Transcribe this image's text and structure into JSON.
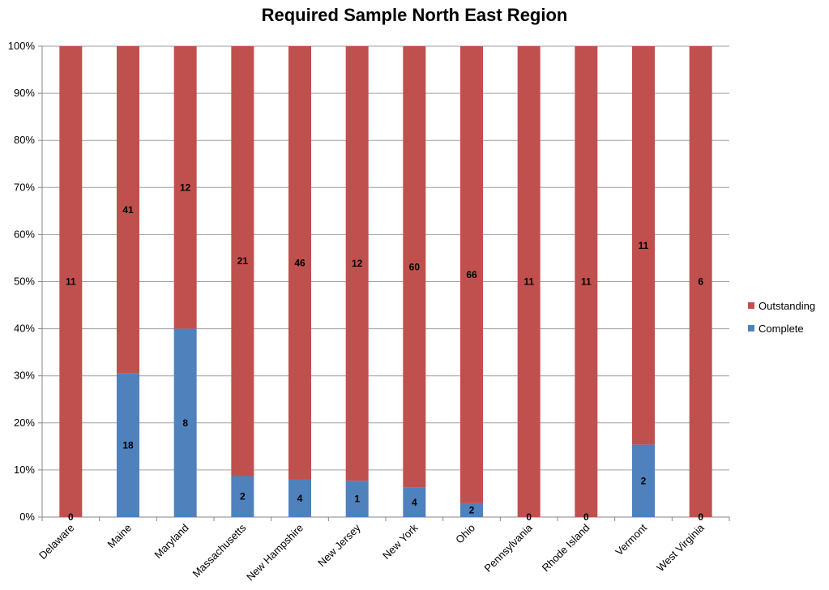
{
  "chart_data": {
    "type": "bar",
    "stacked": "percent",
    "title": "Required Sample North East Region",
    "xlabel": "",
    "ylabel": "",
    "ylim": [
      0,
      100
    ],
    "yticks": [
      "0%",
      "10%",
      "20%",
      "30%",
      "40%",
      "50%",
      "60%",
      "70%",
      "80%",
      "90%",
      "100%"
    ],
    "grid": true,
    "legend_position": "right",
    "categories": [
      "Delaware",
      "Maine",
      "Maryland",
      "Massachusetts",
      "New Hampshire",
      "New Jersey",
      "New York",
      "Ohio",
      "Pennsylvania",
      "Rhode Island",
      "Vermont",
      "West Virginia"
    ],
    "series": [
      {
        "name": "Complete",
        "color": "#4F81BD",
        "values": [
          0,
          18,
          8,
          2,
          4,
          1,
          4,
          2,
          0,
          0,
          2,
          0
        ]
      },
      {
        "name": "Outstanding",
        "color": "#C0504D",
        "values": [
          11,
          41,
          12,
          21,
          46,
          12,
          60,
          66,
          11,
          11,
          11,
          6
        ]
      }
    ]
  }
}
